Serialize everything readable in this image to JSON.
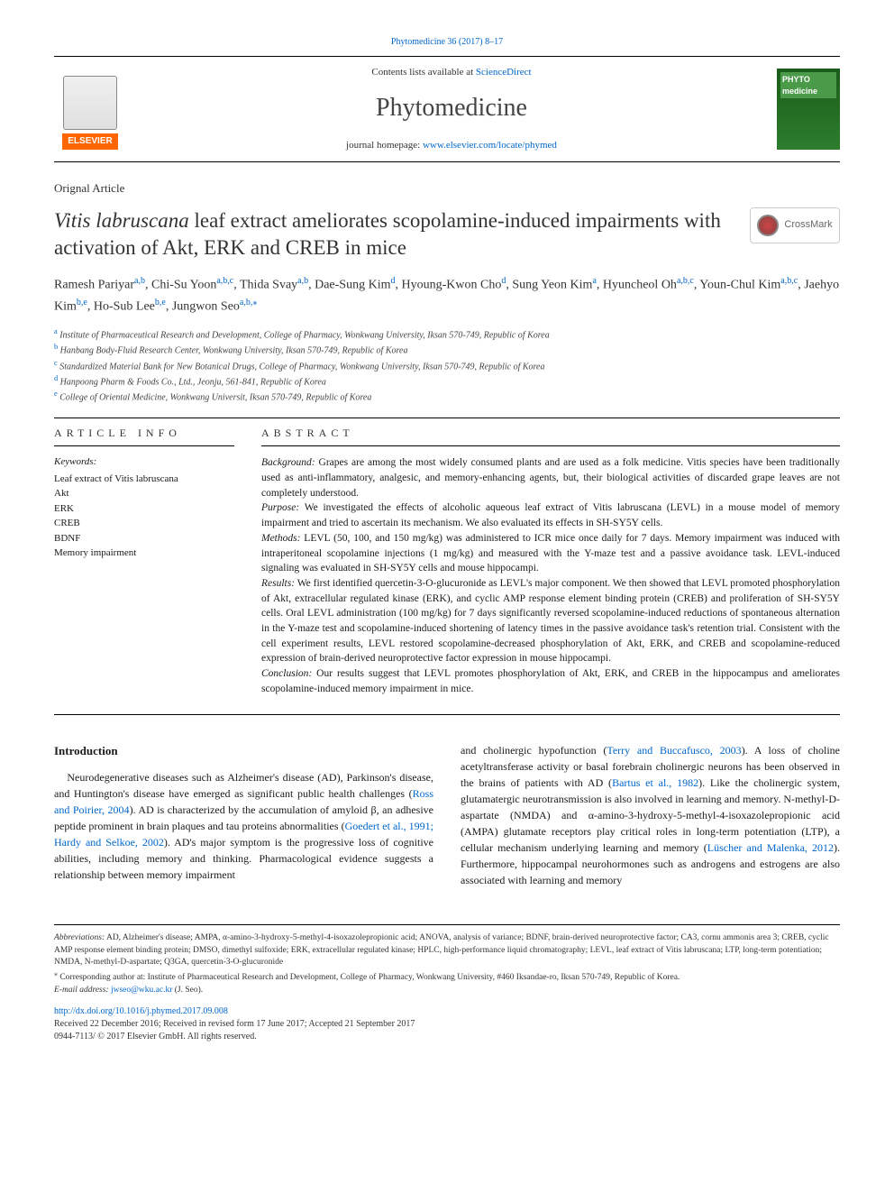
{
  "top_citation": "Phytomedicine 36 (2017) 8–17",
  "header": {
    "contents_prefix": "Contents lists available at ",
    "contents_link": "ScienceDirect",
    "journal": "Phytomedicine",
    "homepage_prefix": "journal homepage: ",
    "homepage_url": "www.elsevier.com/locate/phymed",
    "elsevier_label": "ELSEVIER",
    "cover_title": "PHYTO medicine"
  },
  "article_type": "Orignal Article",
  "title_plain_prefix": "Vitis labruscana",
  "title_rest": " leaf extract ameliorates scopolamine-induced impairments with activation of Akt, ERK and CREB in mice",
  "crossmark_label": "CrossMark",
  "authors_html": "Ramesh Pariyar<sup>a,b</sup>, Chi-Su Yoon<sup>a,b,c</sup>, Thida Svay<sup>a,b</sup>, Dae-Sung Kim<sup>d</sup>, Hyoung-Kwon Cho<sup>d</sup>, Sung Yeon Kim<sup>a</sup>, Hyuncheol Oh<sup>a,b,c</sup>, Youn-Chul Kim<sup>a,b,c</sup>, Jaehyo Kim<sup>b,e</sup>, Ho-Sub Lee<sup>b,e</sup>, Jungwon Seo<sup>a,b,</sup><sup>⁎</sup>",
  "affiliations": [
    {
      "key": "a",
      "text": "Institute of Pharmaceutical Research and Development, College of Pharmacy, Wonkwang University, Iksan 570-749, Republic of Korea"
    },
    {
      "key": "b",
      "text": "Hanbang Body-Fluid Research Center, Wonkwang University, Iksan 570-749, Republic of Korea"
    },
    {
      "key": "c",
      "text": "Standardized Material Bank for New Botanical Drugs, College of Pharmacy, Wonkwang University, Iksan 570-749, Republic of Korea"
    },
    {
      "key": "d",
      "text": "Hanpoong Pharm & Foods Co., Ltd., Jeonju, 561-841, Republic of Korea"
    },
    {
      "key": "e",
      "text": "College of Oriental Medicine, Wonkwang Universit, Iksan 570-749, Republic of Korea"
    }
  ],
  "info_heading": "ARTICLE INFO",
  "abstract_heading": "ABSTRACT",
  "keywords_label": "Keywords:",
  "keywords": [
    "Leaf extract of Vitis labruscana",
    "Akt",
    "ERK",
    "CREB",
    "BDNF",
    "Memory impairment"
  ],
  "abstract": {
    "background_label": "Background:",
    "background": " Grapes are among the most widely consumed plants and are used as a folk medicine. Vitis species have been traditionally used as anti-inflammatory, analgesic, and memory-enhancing agents, but, their biological activities of discarded grape leaves are not completely understood.",
    "purpose_label": "Purpose:",
    "purpose": " We investigated the effects of alcoholic aqueous leaf extract of Vitis labruscana (LEVL) in a mouse model of memory impairment and tried to ascertain its mechanism. We also evaluated its effects in SH-SY5Y cells.",
    "methods_label": "Methods:",
    "methods": " LEVL (50, 100, and 150 mg/kg) was administered to ICR mice once daily for 7 days. Memory impairment was induced with intraperitoneal scopolamine injections (1 mg/kg) and measured with the Y-maze test and a passive avoidance task. LEVL-induced signaling was evaluated in SH-SY5Y cells and mouse hippocampi.",
    "results_label": "Results:",
    "results": " We first identified quercetin-3-O-glucuronide as LEVL's major component. We then showed that LEVL promoted phosphorylation of Akt, extracellular regulated kinase (ERK), and cyclic AMP response element binding protein (CREB) and proliferation of SH-SY5Y cells. Oral LEVL administration (100 mg/kg) for 7 days significantly reversed scopolamine-induced reductions of spontaneous alternation in the Y-maze test and scopolamine-induced shortening of latency times in the passive avoidance task's retention trial. Consistent with the cell experiment results, LEVL restored scopolamine-decreased phosphorylation of Akt, ERK, and CREB and scopolamine-reduced expression of brain-derived neuroprotective factor expression in mouse hippocampi.",
    "conclusion_label": "Conclusion:",
    "conclusion": " Our results suggest that LEVL promotes phosphorylation of Akt, ERK, and CREB in the hippocampus and ameliorates scopolamine-induced memory impairment in mice."
  },
  "intro_heading": "Introduction",
  "intro_col1": "Neurodegenerative diseases such as Alzheimer's disease (AD), Parkinson's disease, and Huntington's disease have emerged as significant public health challenges (|Ross and Poirier, 2004|). AD is characterized by the accumulation of amyloid β, an adhesive peptide prominent in brain plaques and tau proteins abnormalities (|Goedert et al., 1991; Hardy and Selkoe, 2002|). AD's major symptom is the progressive loss of cognitive abilities, including memory and thinking. Pharmacological evidence suggests a relationship between memory impairment",
  "intro_col2": "and cholinergic hypofunction (|Terry and Buccafusco, 2003|). A loss of choline acetyltransferase activity or basal forebrain cholinergic neurons has been observed in the brains of patients with AD (|Bartus et al., 1982|). Like the cholinergic system, glutamatergic neurotransmission is also involved in learning and memory. N-methyl-D-aspartate (NMDA) and α-amino-3-hydroxy-5-methyl-4-isoxazolepropionic acid (AMPA) glutamate receptors play critical roles in long-term potentiation (LTP), a cellular mechanism underlying learning and memory (|Lüscher and Malenka, 2012|). Furthermore, hippocampal neurohormones such as androgens and estrogens are also associated with learning and memory",
  "footer": {
    "abbrev_label": "Abbreviations:",
    "abbrev": " AD, Alzheimer's disease; AMPA, α-amino-3-hydroxy-5-methyl-4-isoxazolepropionic acid; ANOVA, analysis of variance; BDNF, brain-derived neuroprotective factor; CA3, cornu ammonis area 3; CREB, cyclic AMP response element binding protein; DMSO, dimethyl sulfoxide; ERK, extracellular regulated kinase; HPLC, high-performance liquid chromatography; LEVL, leaf extract of Vitis labruscana; LTP, long-term potentiation; NMDA, N-methyl-D-aspartate; Q3GA, quercetin-3-O-glucuronide",
    "corresp_marker": "⁎",
    "corresp": " Corresponding author at: Institute of Pharmaceutical Research and Development, College of Pharmacy, Wonkwang University, #460 Iksandae-ro, Iksan 570-749, Republic of Korea.",
    "email_label": "E-mail address: ",
    "email": "jwseo@wku.ac.kr",
    "email_suffix": " (J. Seo).",
    "doi": "http://dx.doi.org/10.1016/j.phymed.2017.09.008",
    "received": "Received 22 December 2016; Received in revised form 17 June 2017; Accepted 21 September 2017",
    "issn": "0944-7113/ © 2017 Elsevier GmbH. All rights reserved."
  },
  "colors": {
    "link": "#0066cc",
    "elsevier_orange": "#ff6600",
    "cover_green": "#2d7d2d"
  }
}
